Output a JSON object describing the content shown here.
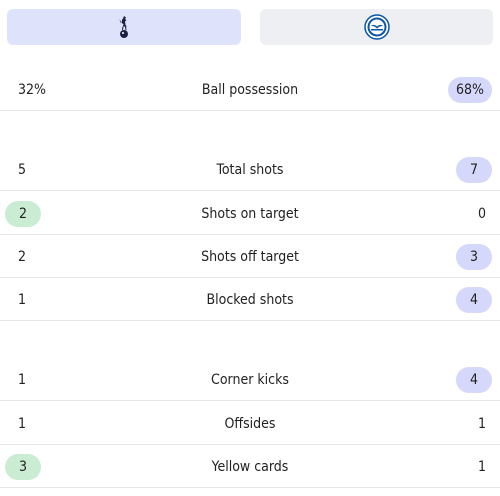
{
  "tabs": {
    "home": {
      "team": "Tottenham Hotspur",
      "crest": "spurs-cockerel-icon",
      "active": true
    },
    "away": {
      "team": "Brighton",
      "crest": "brighton-seagull-icon",
      "active": false
    }
  },
  "colors": {
    "home_tab_bg": "#dfe2fb",
    "away_tab_bg": "#eeeff3",
    "home_highlight": "#c9ecd2",
    "away_highlight": "#d5d8fa",
    "divider": "#e6e6ea"
  },
  "stats": [
    {
      "label": "Ball possession",
      "home": "32%",
      "away": "68%",
      "highlight": "away"
    },
    {
      "label": "Total shots",
      "home": "5",
      "away": "7",
      "highlight": "away"
    },
    {
      "label": "Shots on target",
      "home": "2",
      "away": "0",
      "highlight": "home"
    },
    {
      "label": "Shots off target",
      "home": "2",
      "away": "3",
      "highlight": "away"
    },
    {
      "label": "Blocked shots",
      "home": "1",
      "away": "4",
      "highlight": "away"
    },
    {
      "label": "Corner kicks",
      "home": "1",
      "away": "4",
      "highlight": "away"
    },
    {
      "label": "Offsides",
      "home": "1",
      "away": "1",
      "highlight": "none"
    },
    {
      "label": "Yellow cards",
      "home": "3",
      "away": "1",
      "highlight": "home"
    }
  ]
}
